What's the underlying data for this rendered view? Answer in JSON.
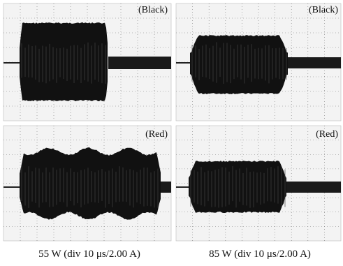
{
  "panels": [
    {
      "label": "(Black)"
    },
    {
      "label": "(Black)"
    },
    {
      "label": "(Red)"
    },
    {
      "label": "(Red)"
    }
  ],
  "captions": [
    "55 W (div 10 μs/2.00 A)",
    "85 W (div 10 μs/2.00 A)"
  ]
}
